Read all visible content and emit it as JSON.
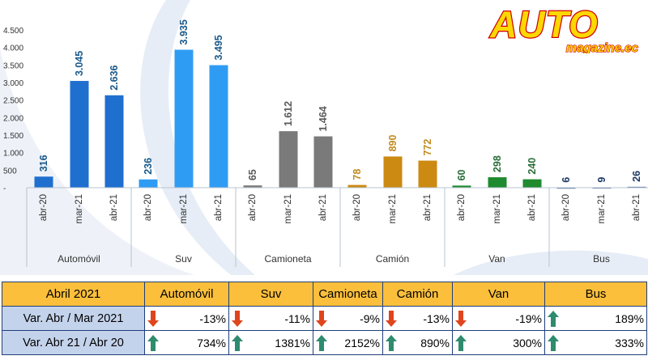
{
  "chart_data": {
    "type": "bar",
    "ylim": [
      0,
      4500
    ],
    "yticks": [
      "4.500",
      "4.000",
      "3.500",
      "3.000",
      "2.500",
      "2.000",
      "1.500",
      "1.000",
      "500",
      "-"
    ],
    "period_labels": [
      "abr-20",
      "mar-21",
      "abr-21"
    ],
    "groups": [
      {
        "name": "Automóvil",
        "values": [
          316,
          3045,
          2636
        ],
        "labels": [
          "316",
          "3.045",
          "2.636"
        ],
        "bar_colors": [
          "#1f6fcf",
          "#1f6fcf",
          "#1f6fcf"
        ],
        "label_color": "#1a5a8c"
      },
      {
        "name": "Suv",
        "values": [
          236,
          3935,
          3495
        ],
        "labels": [
          "236",
          "3.935",
          "3.495"
        ],
        "bar_colors": [
          "#2f9cf4",
          "#2f9cf4",
          "#2f9cf4"
        ],
        "label_color": "#1a5a8c"
      },
      {
        "name": "Camioneta",
        "values": [
          65,
          1612,
          1464
        ],
        "labels": [
          "65",
          "1.612",
          "1.464"
        ],
        "bar_colors": [
          "#7a7a7a",
          "#7a7a7a",
          "#7a7a7a"
        ],
        "label_color": "#5a5a5a"
      },
      {
        "name": "Camión",
        "values": [
          78,
          890,
          772
        ],
        "labels": [
          "78",
          "890",
          "772"
        ],
        "bar_colors": [
          "#cc8a12",
          "#cc8a12",
          "#cc8a12"
        ],
        "label_color": "#c08a1e"
      },
      {
        "name": "Van",
        "values": [
          60,
          298,
          240
        ],
        "labels": [
          "60",
          "298",
          "240"
        ],
        "bar_colors": [
          "#1f8a2f",
          "#1f8a2f",
          "#1f8a2f"
        ],
        "label_color": "#2a6e38"
      },
      {
        "name": "Bus",
        "values": [
          6,
          9,
          26
        ],
        "labels": [
          "6",
          "9",
          "26"
        ],
        "bar_colors": [
          "#4a6fa0",
          "#4a6fa0",
          "#4a6fa0"
        ],
        "label_color": "#1e3a66"
      }
    ]
  },
  "logo": {
    "main": "AUTO",
    "sub": "magazine.ec"
  },
  "table": {
    "header": [
      "Abril 2021",
      "Automóvil",
      "Suv",
      "Camioneta",
      "Camión",
      "Van",
      "Bus"
    ],
    "rows": [
      {
        "label": "Var. Abr / Mar 2021",
        "values": [
          "-13%",
          "-11%",
          "-9%",
          "-13%",
          "-19%",
          "189%"
        ],
        "directions": [
          "down",
          "down",
          "down",
          "down",
          "down",
          "up"
        ]
      },
      {
        "label": "Var. Abr 21 / Abr 20",
        "values": [
          "734%",
          "1381%",
          "2152%",
          "890%",
          "300%",
          "333%"
        ],
        "directions": [
          "up",
          "up",
          "up",
          "up",
          "up",
          "up"
        ]
      }
    ]
  }
}
